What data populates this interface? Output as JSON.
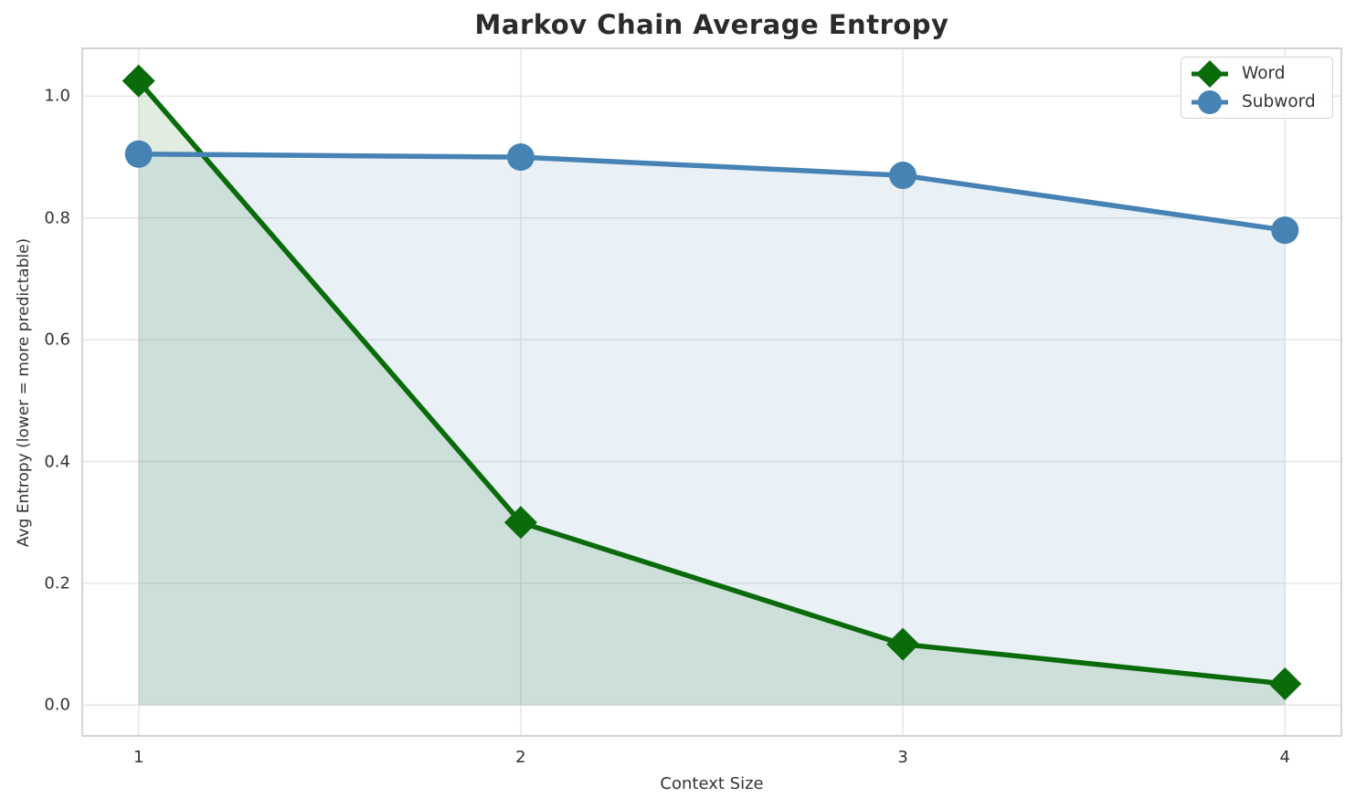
{
  "chart_data": {
    "type": "line",
    "title": "Markov Chain Average Entropy",
    "xlabel": "Context Size",
    "ylabel": "Avg Entropy (lower = more predictable)",
    "x": [
      1,
      2,
      3,
      4
    ],
    "series": [
      {
        "name": "Word",
        "values": [
          1.025,
          0.3,
          0.1,
          0.035
        ],
        "color": "#0a6b0a",
        "marker": "diamond"
      },
      {
        "name": "Subword",
        "values": [
          0.905,
          0.9,
          0.87,
          0.78
        ],
        "color": "#4682b4",
        "marker": "circle"
      }
    ],
    "xticks": [
      1,
      2,
      3,
      4
    ],
    "xtick_labels": [
      "1",
      "2",
      "3",
      "4"
    ],
    "yticks": [
      0.0,
      0.2,
      0.4,
      0.6,
      0.8,
      1.0
    ],
    "ytick_labels": [
      "0.0",
      "0.2",
      "0.4",
      "0.6",
      "0.8",
      "1.0"
    ],
    "xlim": [
      0.85,
      4.15
    ],
    "ylim": [
      -0.052,
      1.08
    ],
    "grid": true,
    "area_fill": true,
    "fill_opacity": 0.12,
    "baseline": 0,
    "legend_position": "upper right",
    "grid_color": "#e7e7e7",
    "frame_color": "#d4d4d4",
    "text_color": "#333333",
    "title_color": "#2b2b2b"
  }
}
